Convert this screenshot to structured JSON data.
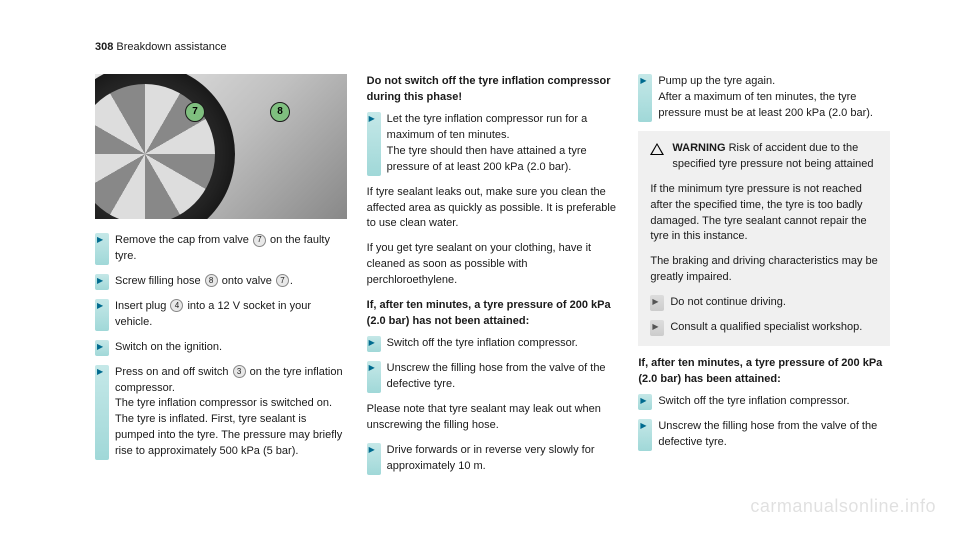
{
  "header": {
    "page_number": "308",
    "section": "Breakdown assistance"
  },
  "figure": {
    "callouts": [
      "7",
      "8"
    ]
  },
  "col1": {
    "steps": [
      {
        "text_before": "Remove the cap from valve ",
        "num": "7",
        "text_after": " on the faulty tyre."
      },
      {
        "text_before": "Screw filling hose ",
        "num": "8",
        "text_mid": " onto valve ",
        "num2": "7",
        "text_after": "."
      },
      {
        "text_before": "Insert plug ",
        "num": "4",
        "text_after": " into a 12 V socket in your vehicle."
      },
      {
        "text_after": "Switch on the ignition."
      },
      {
        "text_before": "Press on and off switch ",
        "num": "3",
        "text_after": " on the tyre inflation compressor.",
        "extra": "The tyre inflation compressor is switched on. The tyre is inflated. First, tyre sealant is pumped into the tyre. The pressure may briefly rise to approximately 500 kPa (5 bar)."
      }
    ]
  },
  "col2": {
    "bold1": "Do not switch off the tyre inflation compressor during this phase!",
    "step1": "Let the tyre inflation compressor run for a maximum of ten minutes.",
    "step1b": "The tyre should then have attained a tyre pressure of at least 200 kPa (2.0 bar).",
    "para1": "If tyre sealant leaks out, make sure you clean the affected area as quickly as possible. It is preferable to use clean water.",
    "para2": "If you get tyre sealant on your clothing, have it cleaned as soon as possible with perchloroethylene.",
    "bold2": "If, after ten minutes, a tyre pressure of 200 kPa (2.0 bar) has not been attained:",
    "step2": "Switch off the tyre inflation compressor.",
    "step3": "Unscrew the filling hose from the valve of the defective tyre.",
    "para3": "Please note that tyre sealant may leak out when unscrewing the filling hose.",
    "step4": "Drive forwards or in reverse very slowly for approximately 10 m."
  },
  "col3": {
    "step1": "Pump up the tyre again.",
    "step1b": "After a maximum of ten minutes, the tyre pressure must be at least 200 kPa (2.0 bar).",
    "warning": {
      "label": "WARNING",
      "title": " Risk of accident due to the specified tyre pressure not being attained",
      "para1": "If the minimum tyre pressure is not reached after the specified time, the tyre is too badly damaged. The tyre sealant cannot repair the tyre in this instance.",
      "para2": "The braking and driving characteristics may be greatly impaired.",
      "s1": "Do not continue driving.",
      "s2": "Consult a qualified specialist workshop."
    },
    "bold1": "If, after ten minutes, a tyre pressure of 200 kPa (2.0 bar) has been attained:",
    "step2": "Switch off the tyre inflation compressor.",
    "step3": "Unscrew the filling hose from the valve of the defective tyre."
  },
  "watermark": "carmanualsonline.info"
}
